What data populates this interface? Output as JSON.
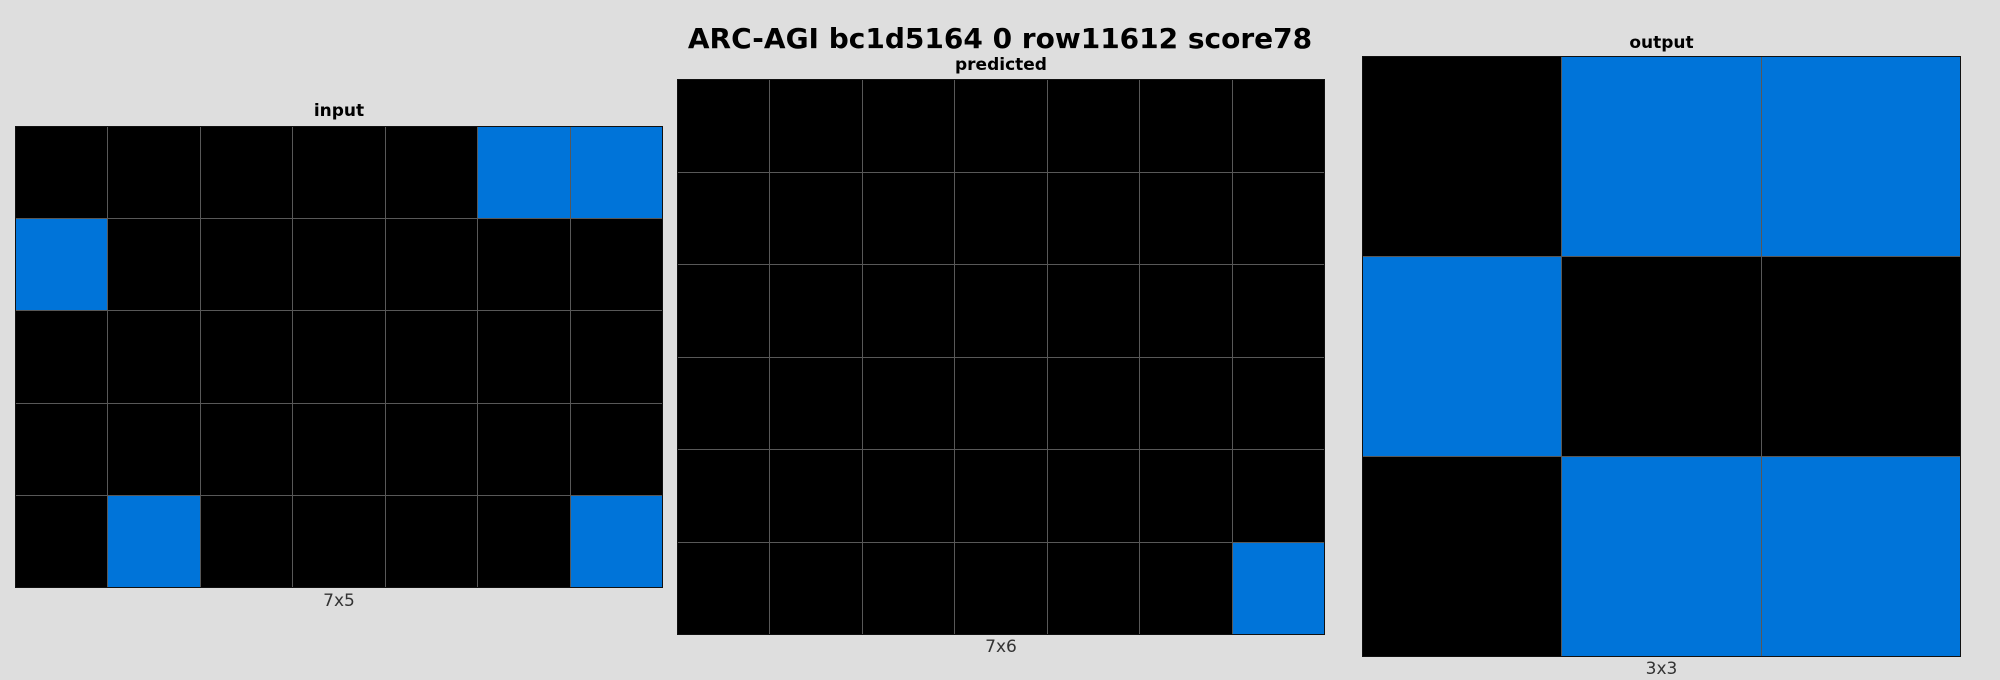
{
  "title": "ARC-AGI bc1d5164 0 row11612 score78",
  "palette": {
    "0": "#000000",
    "1": "#0074D9"
  },
  "panels": [
    {
      "key": "input",
      "label": "input",
      "dims": "7x5",
      "grid": [
        [
          0,
          0,
          0,
          0,
          0,
          1,
          1
        ],
        [
          1,
          0,
          0,
          0,
          0,
          0,
          0
        ],
        [
          0,
          0,
          0,
          0,
          0,
          0,
          0
        ],
        [
          0,
          0,
          0,
          0,
          0,
          0,
          0
        ],
        [
          0,
          1,
          0,
          0,
          0,
          0,
          1
        ]
      ]
    },
    {
      "key": "predicted",
      "label": "predicted",
      "dims": "7x6",
      "grid": [
        [
          0,
          0,
          0,
          0,
          0,
          0,
          0
        ],
        [
          0,
          0,
          0,
          0,
          0,
          0,
          0
        ],
        [
          0,
          0,
          0,
          0,
          0,
          0,
          0
        ],
        [
          0,
          0,
          0,
          0,
          0,
          0,
          0
        ],
        [
          0,
          0,
          0,
          0,
          0,
          0,
          0
        ],
        [
          0,
          0,
          0,
          0,
          0,
          0,
          1
        ]
      ]
    },
    {
      "key": "output",
      "label": "output",
      "dims": "3x3",
      "grid": [
        [
          0,
          1,
          1
        ],
        [
          1,
          0,
          0
        ],
        [
          0,
          1,
          1
        ]
      ]
    }
  ]
}
